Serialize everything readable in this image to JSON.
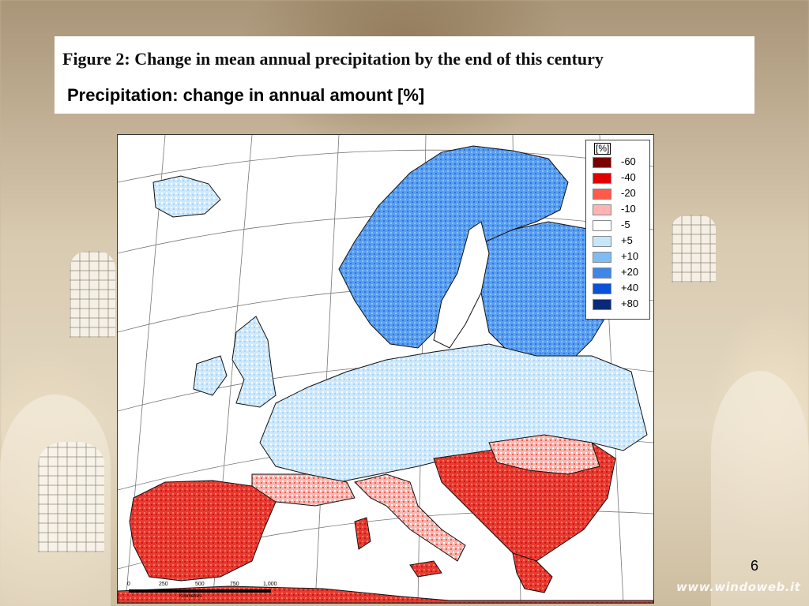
{
  "slide": {
    "figure_title": "Figure 2: Change in mean annual precipitation by the end of this century",
    "subtitle": "Precipitation: change in annual amount [%]",
    "page_number": "6",
    "watermark": "www.windoweb.it"
  },
  "legend": {
    "unit": "[%]",
    "items": [
      {
        "label": "-60",
        "color": "#7a0000"
      },
      {
        "label": "-40",
        "color": "#e00000"
      },
      {
        "label": "-20",
        "color": "#ff5a4a"
      },
      {
        "label": "-10",
        "color": "#ffb3b3"
      },
      {
        "label": "-5",
        "color": "#ffffff"
      },
      {
        "label": "+5",
        "color": "#c6e6fb"
      },
      {
        "label": "+10",
        "color": "#7fbcf2"
      },
      {
        "label": "+20",
        "color": "#3f86e6"
      },
      {
        "label": "+40",
        "color": "#0a50d8"
      },
      {
        "label": "+80",
        "color": "#082a78"
      }
    ]
  },
  "scale_bar": {
    "ticks": [
      "0",
      "250",
      "500",
      "750",
      "1,000"
    ],
    "unit": "Kilometres"
  }
}
